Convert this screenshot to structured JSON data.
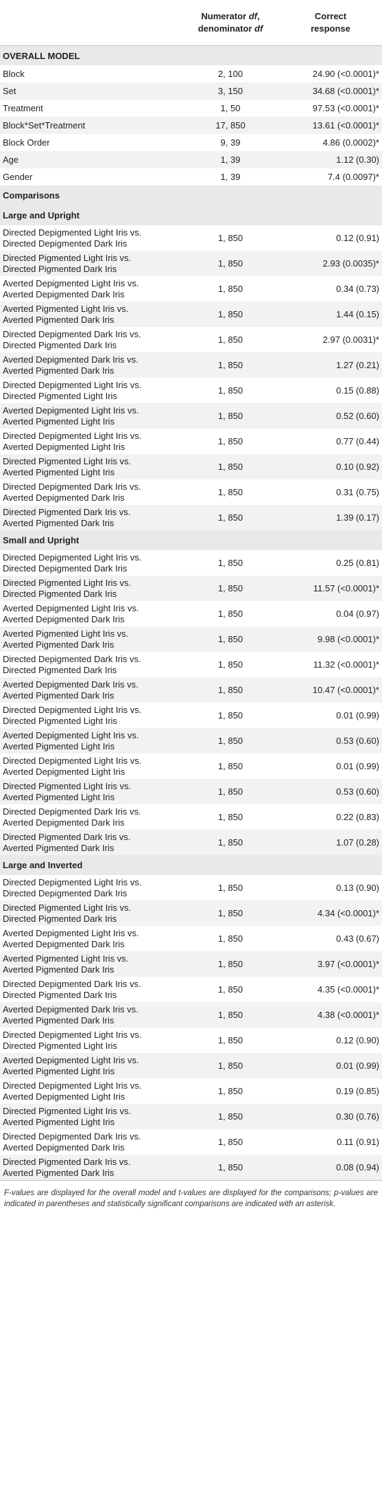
{
  "header": {
    "col2_line1": "Numerator ",
    "col2_df1": "df",
    "col2_line1b": ",",
    "col2_line2": "denominator ",
    "col2_df2": "df",
    "col3_line1": "Correct",
    "col3_line2": "response"
  },
  "overall": {
    "title": "OVERALL MODEL",
    "rows": [
      {
        "label": "Block",
        "df": "2, 100",
        "value": "24.90 (<0.0001)*"
      },
      {
        "label": "Set",
        "df": "3, 150",
        "value": "34.68 (<0.0001)*"
      },
      {
        "label": "Treatment",
        "df": "1, 50",
        "value": "97.53 (<0.0001)*"
      },
      {
        "label": "Block*Set*Treatment",
        "df": "17, 850",
        "value": "13.61 (<0.0001)*"
      },
      {
        "label": "Block Order",
        "df": "9, 39",
        "value": "4.86 (0.0002)*"
      },
      {
        "label": "Age",
        "df": "1, 39",
        "value": "1.12 (0.30)"
      },
      {
        "label": "Gender",
        "df": "1, 39",
        "value": "7.4 (0.0097)*"
      }
    ]
  },
  "comparisons_title": "Comparisons",
  "groups": [
    {
      "title": "Large and Upright",
      "rows": [
        {
          "l1": "Directed Depigmented Light Iris vs.",
          "l2": "Directed Depigmented Dark Iris",
          "df": "1, 850",
          "value": "0.12 (0.91)"
        },
        {
          "l1": "Directed Pigmented Light Iris vs.",
          "l2": "Directed Pigmented Dark Iris",
          "df": "1, 850",
          "value": "2.93 (0.0035)*"
        },
        {
          "l1": "Averted Depigmented Light Iris vs.",
          "l2": "Averted Depigmented Dark Iris",
          "df": "1, 850",
          "value": "0.34 (0.73)"
        },
        {
          "l1": "Averted Pigmented Light Iris vs.",
          "l2": "Averted Pigmented Dark Iris",
          "df": "1, 850",
          "value": "1.44 (0.15)"
        },
        {
          "l1": "Directed Depigmented Dark Iris vs.",
          "l2": "Directed Pigmented Dark Iris",
          "df": "1, 850",
          "value": "2.97 (0.0031)*"
        },
        {
          "l1": "Averted Depigmented Dark Iris vs.",
          "l2": "Averted Pigmented Dark Iris",
          "df": "1, 850",
          "value": "1.27 (0.21)"
        },
        {
          "l1": "Directed Depigmented Light Iris vs.",
          "l2": "Directed Pigmented Light Iris",
          "df": "1, 850",
          "value": "0.15 (0.88)"
        },
        {
          "l1": "Averted Depigmented Light Iris vs.",
          "l2": "Averted Pigmented Light Iris",
          "df": "1, 850",
          "value": "0.52 (0.60)"
        },
        {
          "l1": "Directed Depigmented Light Iris vs.",
          "l2": "Averted Depigmented Light Iris",
          "df": "1, 850",
          "value": "0.77 (0.44)"
        },
        {
          "l1": "Directed Pigmented Light Iris vs.",
          "l2": "Averted Pigmented Light Iris",
          "df": "1, 850",
          "value": "0.10 (0.92)"
        },
        {
          "l1": "Directed Depigmented Dark Iris vs.",
          "l2": "Averted Depigmented Dark Iris",
          "df": "1, 850",
          "value": "0.31 (0.75)"
        },
        {
          "l1": "Directed Pigmented Dark Iris vs.",
          "l2": "Averted Pigmented Dark Iris",
          "df": "1, 850",
          "value": "1.39 (0.17)"
        }
      ]
    },
    {
      "title": "Small and Upright",
      "rows": [
        {
          "l1": "Directed Depigmented Light Iris vs.",
          "l2": "Directed Depigmented Dark Iris",
          "df": "1, 850",
          "value": "0.25 (0.81)"
        },
        {
          "l1": "Directed Pigmented Light Iris vs.",
          "l2": "Directed Pigmented Dark Iris",
          "df": "1, 850",
          "value": "11.57 (<0.0001)*"
        },
        {
          "l1": "Averted Depigmented Light Iris vs.",
          "l2": "Averted Depigmented Dark Iris",
          "df": "1, 850",
          "value": "0.04 (0.97)"
        },
        {
          "l1": "Averted Pigmented Light Iris vs.",
          "l2": "Averted Pigmented Dark Iris",
          "df": "1, 850",
          "value": "9.98 (<0.0001)*"
        },
        {
          "l1": "Directed Depigmented Dark Iris vs.",
          "l2": "Directed Pigmented Dark Iris",
          "df": "1, 850",
          "value": "11.32 (<0.0001)*"
        },
        {
          "l1": "Averted Depigmented Dark Iris vs.",
          "l2": "Averted Pigmented Dark Iris",
          "df": "1, 850",
          "value": "10.47 (<0.0001)*"
        },
        {
          "l1": "Directed Depigmented Light Iris vs.",
          "l2": "Directed Pigmented Light Iris",
          "df": "1, 850",
          "value": "0.01 (0.99)"
        },
        {
          "l1": "Averted Depigmented Light Iris vs.",
          "l2": "Averted Pigmented Light Iris",
          "df": "1, 850",
          "value": "0.53 (0.60)"
        },
        {
          "l1": "Directed Depigmented Light Iris vs.",
          "l2": "Averted Depigmented Light Iris",
          "df": "1, 850",
          "value": "0.01 (0.99)"
        },
        {
          "l1": "Directed Pigmented Light Iris vs.",
          "l2": "Averted Pigmented Light Iris",
          "df": "1, 850",
          "value": "0.53 (0.60)"
        },
        {
          "l1": "Directed Depigmented Dark Iris vs.",
          "l2": "Averted Depigmented Dark Iris",
          "df": "1, 850",
          "value": "0.22 (0.83)"
        },
        {
          "l1": "Directed Pigmented Dark Iris vs.",
          "l2": "Averted Pigmented Dark Iris",
          "df": "1, 850",
          "value": "1.07 (0.28)"
        }
      ]
    },
    {
      "title": "Large and Inverted",
      "rows": [
        {
          "l1": "Directed Depigmented Light Iris vs.",
          "l2": "Directed Depigmented Dark Iris",
          "df": "1, 850",
          "value": "0.13 (0.90)"
        },
        {
          "l1": "Directed Pigmented Light Iris vs.",
          "l2": "Directed Pigmented Dark Iris",
          "df": "1, 850",
          "value": "4.34 (<0.0001)*"
        },
        {
          "l1": "Averted Depigmented Light Iris vs.",
          "l2": "Averted Depigmented Dark Iris",
          "df": "1, 850",
          "value": "0.43 (0.67)"
        },
        {
          "l1": "Averted Pigmented Light Iris vs.",
          "l2": "Averted Pigmented Dark Iris",
          "df": "1, 850",
          "value": "3.97 (<0.0001)*"
        },
        {
          "l1": "Directed Depigmented Dark Iris vs.",
          "l2": "Directed Pigmented Dark Iris",
          "df": "1, 850",
          "value": "4.35 (<0.0001)*"
        },
        {
          "l1": "Averted Depigmented Dark Iris vs.",
          "l2": "Averted Pigmented Dark Iris",
          "df": "1, 850",
          "value": "4.38 (<0.0001)*"
        },
        {
          "l1": "Directed Depigmented Light Iris vs.",
          "l2": "Directed Pigmented Light Iris",
          "df": "1, 850",
          "value": "0.12 (0.90)"
        },
        {
          "l1": "Averted Depigmented Light Iris vs.",
          "l2": "Averted Pigmented Light Iris",
          "df": "1, 850",
          "value": "0.01 (0.99)"
        },
        {
          "l1": "Directed Depigmented Light Iris vs.",
          "l2": "Averted Depigmented Light Iris",
          "df": "1, 850",
          "value": "0.19 (0.85)"
        },
        {
          "l1": "Directed Pigmented Light Iris vs.",
          "l2": "Averted Pigmented Light Iris",
          "df": "1, 850",
          "value": "0.30 (0.76)"
        },
        {
          "l1": "Directed Depigmented Dark Iris vs.",
          "l2": "Averted Depigmented Dark Iris",
          "df": "1, 850",
          "value": "0.11 (0.91)"
        },
        {
          "l1": "Directed Pigmented Dark Iris vs.",
          "l2": "Averted Pigmented Dark Iris",
          "df": "1, 850",
          "value": "0.08 (0.94)"
        }
      ]
    }
  ],
  "footnote": "F-values are displayed for the overall model and t-values are displayed for the comparisons; p-values are indicated in parentheses and statistically significant comparisons are indicated with an asterisk."
}
